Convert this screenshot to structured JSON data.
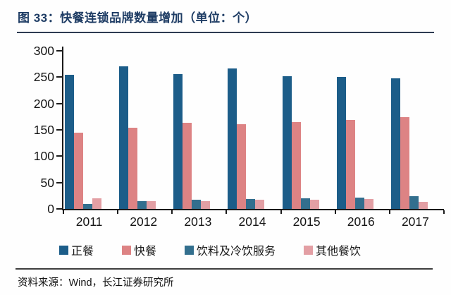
{
  "figure": {
    "title": "图 33：快餐连锁品牌数量增加（单位：个）",
    "source": "资料来源：Wind，长江证券研究所"
  },
  "colors": {
    "title_text": "#1e3c64",
    "title_rule": "#2e3b52",
    "axis": "#1a1a1a",
    "source_rule": "#3f3f3f"
  },
  "chart_data": {
    "type": "bar",
    "title": "快餐连锁品牌数量增加（单位：个）",
    "categories": [
      "2011",
      "2012",
      "2013",
      "2014",
      "2015",
      "2016",
      "2017"
    ],
    "series": [
      {
        "name": "正餐",
        "color": "#1c5d89",
        "values": [
          254,
          270,
          256,
          266,
          252,
          250,
          248
        ]
      },
      {
        "name": "快餐",
        "color": "#dd8384",
        "values": [
          144,
          154,
          163,
          161,
          165,
          169,
          174
        ]
      },
      {
        "name": "饮料及冷饮服务",
        "color": "#336f8e",
        "values": [
          10,
          15,
          17,
          19,
          20,
          21,
          24
        ]
      },
      {
        "name": "其他餐饮",
        "color": "#e39fa4",
        "values": [
          20,
          15,
          15,
          17,
          17,
          19,
          14
        ]
      }
    ],
    "xlabel": "",
    "ylabel": "",
    "ylim": [
      0,
      300
    ],
    "ytick_step": 50,
    "grid": false,
    "legend_position": "bottom"
  }
}
